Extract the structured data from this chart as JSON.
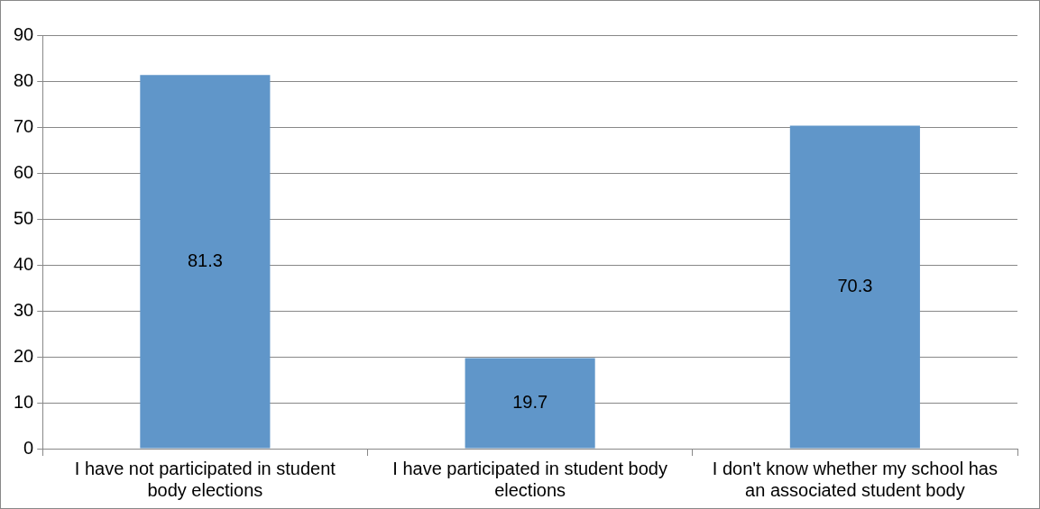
{
  "chart_data": {
    "type": "bar",
    "categories": [
      "I have not participated in student body elections",
      "I have participated in student body elections",
      "I don't know whether my school has an associated student body"
    ],
    "values": [
      81.3,
      19.7,
      70.3
    ],
    "color": "#6096c9",
    "ylim": [
      0,
      90
    ],
    "yticks": [
      0,
      10,
      20,
      30,
      40,
      50,
      60,
      70,
      80,
      90
    ],
    "grid": "y",
    "legend": false,
    "data_labels": true
  }
}
